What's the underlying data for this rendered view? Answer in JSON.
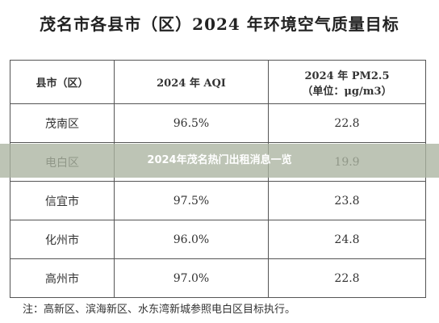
{
  "header": {
    "title": "茂名市各县市（区）2024 年环境空气质量目标"
  },
  "table": {
    "columns": [
      "县市（区）",
      "2024 年 AQI",
      [
        "2024 年 PM2.5",
        "（单位：μg/m3）"
      ]
    ],
    "rows": [
      {
        "district": "茂南区",
        "aqi": "96.5%",
        "pm25": "22.8"
      },
      {
        "district": "电白区",
        "pm25": "19.9"
      },
      {
        "district": "信宜市",
        "aqi": "97.5%",
        "pm25": "23.8"
      },
      {
        "district": "化州市",
        "aqi": "96.0%",
        "pm25": "24.8"
      },
      {
        "district": "高州市",
        "aqi": "97.0%",
        "pm25": "22.8"
      }
    ]
  },
  "note": "注：高新区、滨海新区、水东湾新城参照电白区目标执行。",
  "banner": "2024年茂名热门出租消息一览"
}
